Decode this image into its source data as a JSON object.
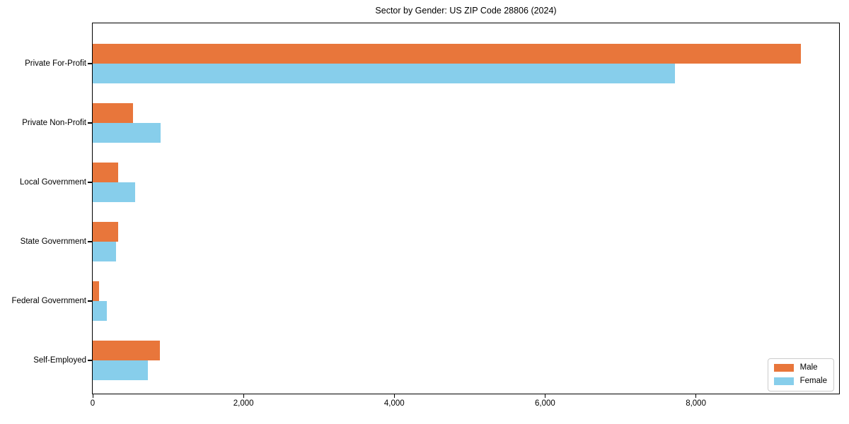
{
  "title": "Sector by Gender: US ZIP Code 28806 (2024)",
  "chart_data": {
    "type": "bar",
    "orientation": "horizontal",
    "title": "Sector by Gender: US ZIP Code 28806 (2024)",
    "categories": [
      "Private For-Profit",
      "Private Non-Profit",
      "Local Government",
      "State Government",
      "Federal Government",
      "Self-Employed"
    ],
    "series": [
      {
        "name": "Male",
        "color": "#E8763B",
        "values": [
          9390,
          535,
          335,
          335,
          85,
          890
        ]
      },
      {
        "name": "Female",
        "color": "#87CEEB",
        "values": [
          7720,
          900,
          560,
          310,
          190,
          730
        ]
      }
    ],
    "xlabel": "",
    "ylabel": "",
    "x_ticks": [
      0,
      2000,
      4000,
      6000,
      8000
    ],
    "x_tick_labels": [
      "0",
      "2,000",
      "4,000",
      "6,000",
      "8,000"
    ],
    "xlim": [
      0,
      9890
    ],
    "grid": false,
    "legend_position": "lower right",
    "legend_entries": [
      "Male",
      "Female"
    ]
  }
}
